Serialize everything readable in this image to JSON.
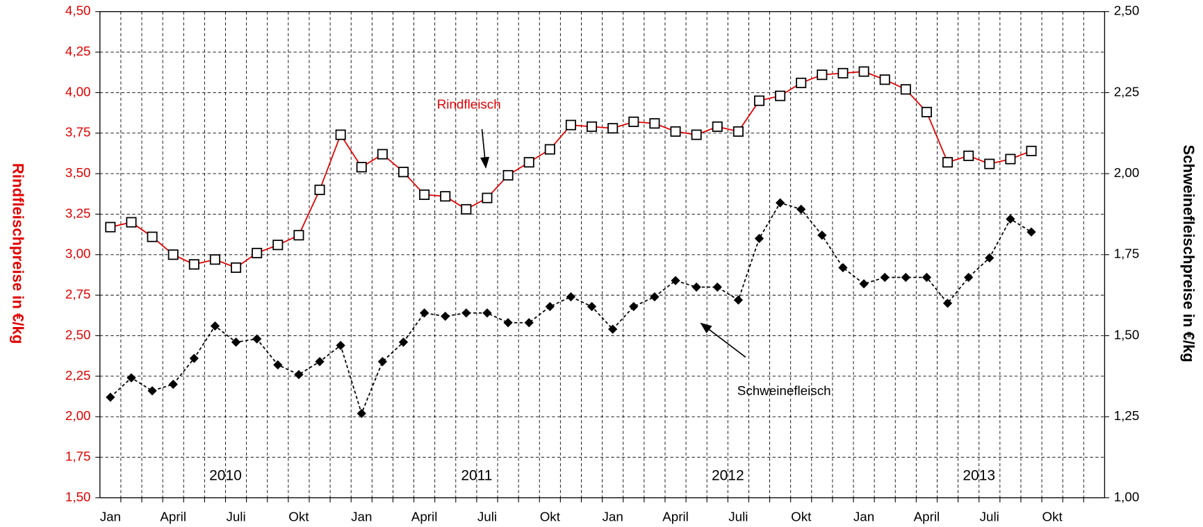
{
  "chart_data": {
    "type": "line",
    "categories": [
      "Jan",
      null,
      null,
      "April",
      null,
      null,
      "Juli",
      null,
      null,
      "Okt",
      null,
      null,
      "Jan",
      null,
      null,
      "April",
      null,
      null,
      "Juli",
      null,
      null,
      "Okt",
      null,
      null,
      "Jan",
      null,
      null,
      "April",
      null,
      null,
      "Juli",
      null,
      null,
      "Okt",
      null,
      null,
      "Jan",
      null,
      null,
      "April",
      null,
      null,
      "Juli",
      null,
      null,
      "Okt",
      null,
      null
    ],
    "year_labels": [
      "2010",
      "2011",
      "2012",
      "2013"
    ],
    "annotations": [
      "Rindfleisch",
      "Schweinefleisch"
    ],
    "ylabel": "Rindfleischpreise in €/kg",
    "y2label": "Schweinefleischpreise in €/kg",
    "ylim": [
      1.5,
      4.5
    ],
    "yticks": [
      {
        "value": 1.5,
        "label": "1,50"
      },
      {
        "value": 1.75,
        "label": "1,75"
      },
      {
        "value": 2.0,
        "label": "2,00"
      },
      {
        "value": 2.25,
        "label": "2,25"
      },
      {
        "value": 2.5,
        "label": "2,50"
      },
      {
        "value": 2.75,
        "label": "2,75"
      },
      {
        "value": 3.0,
        "label": "3,00"
      },
      {
        "value": 3.25,
        "label": "3,25"
      },
      {
        "value": 3.5,
        "label": "3,50"
      },
      {
        "value": 3.75,
        "label": "3,75"
      },
      {
        "value": 4.0,
        "label": "4,00"
      },
      {
        "value": 4.25,
        "label": "4,25"
      },
      {
        "value": 4.5,
        "label": "4,50"
      }
    ],
    "y2lim": [
      1.0,
      2.5
    ],
    "y2ticks": [
      {
        "value": 1.0,
        "label": "1,00"
      },
      {
        "value": 1.25,
        "label": "1,25"
      },
      {
        "value": 1.5,
        "label": "1,50"
      },
      {
        "value": 1.75,
        "label": "1,75"
      },
      {
        "value": 2.0,
        "label": "2,00"
      },
      {
        "value": 2.25,
        "label": "2,25"
      },
      {
        "value": 2.5,
        "label": "2,50"
      }
    ],
    "grid": true,
    "series": [
      {
        "name": "Rindfleisch",
        "color": "#e00000",
        "marker": "square",
        "line_style": "solid",
        "values": [
          3.17,
          3.2,
          3.11,
          3.0,
          2.94,
          2.97,
          2.92,
          3.01,
          3.06,
          3.12,
          3.4,
          3.74,
          3.54,
          3.62,
          3.51,
          3.37,
          3.36,
          3.28,
          3.35,
          3.49,
          3.57,
          3.65,
          3.8,
          3.79,
          3.78,
          3.82,
          3.81,
          3.76,
          3.74,
          3.79,
          3.76,
          3.95,
          3.98,
          4.06,
          4.11,
          4.12,
          4.13,
          4.08,
          4.02,
          3.88,
          3.57,
          3.61,
          3.56,
          3.59,
          3.64,
          null,
          null,
          null
        ]
      },
      {
        "name": "Schweinefleisch",
        "color": "#000000",
        "marker": "diamond",
        "line_style": "dashed",
        "axis": "y2",
        "values": [
          1.31,
          1.37,
          1.33,
          1.35,
          1.43,
          1.53,
          1.48,
          1.49,
          1.41,
          1.38,
          1.42,
          1.47,
          1.26,
          1.42,
          1.48,
          1.57,
          1.56,
          1.57,
          1.57,
          1.54,
          1.54,
          1.59,
          1.62,
          1.59,
          1.52,
          1.59,
          1.62,
          1.67,
          1.65,
          1.65,
          1.61,
          1.8,
          1.91,
          1.89,
          1.81,
          1.71,
          1.66,
          1.68,
          1.68,
          1.68,
          1.6,
          1.68,
          1.74,
          1.86,
          1.82,
          null,
          null,
          null
        ]
      }
    ]
  }
}
